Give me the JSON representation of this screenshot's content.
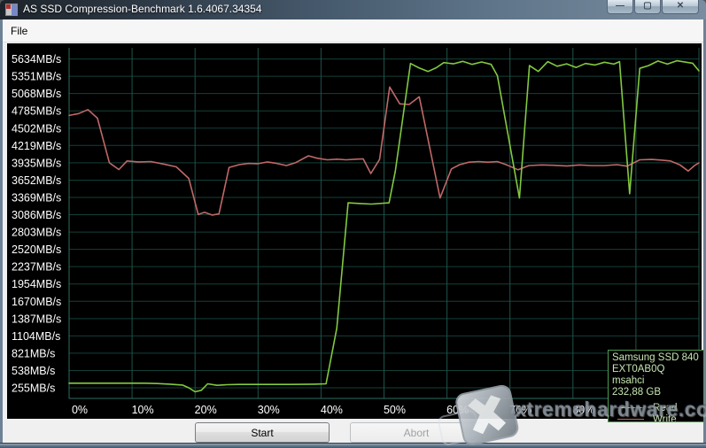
{
  "window": {
    "title": "AS SSD Compression-Benchmark 1.6.4067.34354",
    "controls": [
      {
        "name": "minimize",
        "glyph": "—"
      },
      {
        "name": "maximize",
        "glyph": "▢"
      },
      {
        "name": "close",
        "glyph": "✕"
      }
    ]
  },
  "menu": {
    "items": [
      {
        "label": "File"
      }
    ]
  },
  "chart_data": {
    "type": "line",
    "title": "AS SSD Compression-Benchmark",
    "xlabel": "",
    "ylabel": "",
    "x_tick_labels": [
      "0%",
      "10%",
      "20%",
      "30%",
      "40%",
      "50%",
      "60%",
      "70%",
      "80%",
      "90%",
      "100%"
    ],
    "x_tick_values": [
      0,
      10,
      20,
      30,
      40,
      50,
      60,
      70,
      80,
      90,
      100
    ],
    "y_tick_labels": [
      "5634MB/s",
      "5351MB/s",
      "5068MB/s",
      "4785MB/s",
      "4502MB/s",
      "4219MB/s",
      "3935MB/s",
      "3652MB/s",
      "3369MB/s",
      "3086MB/s",
      "2803MB/s",
      "2520MB/s",
      "2237MB/s",
      "1954MB/s",
      "1670MB/s",
      "1387MB/s",
      "1104MB/s",
      "821MB/s",
      "538MB/s",
      "255MB/s"
    ],
    "y_tick_values": [
      5634,
      5351,
      5068,
      4785,
      4502,
      4219,
      3935,
      3652,
      3369,
      3086,
      2803,
      2520,
      2237,
      1954,
      1670,
      1387,
      1104,
      821,
      538,
      255
    ],
    "xlim": [
      0,
      100
    ],
    "ylim": [
      80,
      5820
    ],
    "grid": true,
    "background": "#000000",
    "gridline_color_h": "#143f38",
    "gridline_color_v": "#1d5449",
    "axis_color": "#2b6e60",
    "legend_position": "bottom-right",
    "series": [
      {
        "name": "Write",
        "color": "#c06868",
        "points": [
          [
            0,
            4710
          ],
          [
            1.5,
            4740
          ],
          [
            3,
            4805
          ],
          [
            4.5,
            4665
          ],
          [
            6.4,
            3935
          ],
          [
            7.9,
            3825
          ],
          [
            9.2,
            3965
          ],
          [
            11,
            3950
          ],
          [
            13,
            3955
          ],
          [
            15,
            3915
          ],
          [
            17,
            3870
          ],
          [
            19,
            3680
          ],
          [
            20.5,
            3090
          ],
          [
            21.5,
            3125
          ],
          [
            22.7,
            3080
          ],
          [
            23.8,
            3100
          ],
          [
            25.4,
            3860
          ],
          [
            27,
            3905
          ],
          [
            28.5,
            3925
          ],
          [
            30,
            3920
          ],
          [
            31.5,
            3950
          ],
          [
            33,
            3925
          ],
          [
            34.5,
            3890
          ],
          [
            36,
            3940
          ],
          [
            38,
            4050
          ],
          [
            39.4,
            4010
          ],
          [
            41,
            3985
          ],
          [
            42.5,
            3995
          ],
          [
            44,
            3985
          ],
          [
            45.5,
            3995
          ],
          [
            46.7,
            4000
          ],
          [
            47.9,
            3760
          ],
          [
            49.3,
            3990
          ],
          [
            50.9,
            5175
          ],
          [
            52.5,
            4900
          ],
          [
            54,
            4890
          ],
          [
            55.6,
            5015
          ],
          [
            58.9,
            3360
          ],
          [
            60.7,
            3835
          ],
          [
            62,
            3905
          ],
          [
            63.5,
            3945
          ],
          [
            65,
            3955
          ],
          [
            66.5,
            3945
          ],
          [
            68,
            3955
          ],
          [
            69.5,
            3900
          ],
          [
            71.3,
            3820
          ],
          [
            73,
            3890
          ],
          [
            75,
            3900
          ],
          [
            77,
            3895
          ],
          [
            79,
            3885
          ],
          [
            81,
            3900
          ],
          [
            83,
            3890
          ],
          [
            85,
            3890
          ],
          [
            87,
            3905
          ],
          [
            88.6,
            3880
          ],
          [
            90.6,
            3985
          ],
          [
            92.5,
            3990
          ],
          [
            94,
            3980
          ],
          [
            95.5,
            3965
          ],
          [
            97,
            3900
          ],
          [
            98.3,
            3800
          ],
          [
            99.3,
            3890
          ],
          [
            100,
            3935
          ]
        ]
      },
      {
        "name": "Read",
        "color": "#82c940",
        "points": [
          [
            0,
            330
          ],
          [
            2,
            330
          ],
          [
            4,
            330
          ],
          [
            6,
            330
          ],
          [
            8,
            330
          ],
          [
            10,
            330
          ],
          [
            12,
            330
          ],
          [
            14,
            325
          ],
          [
            16,
            315
          ],
          [
            18,
            300
          ],
          [
            19,
            255
          ],
          [
            20,
            190
          ],
          [
            21,
            215
          ],
          [
            22,
            320
          ],
          [
            23.5,
            295
          ],
          [
            25,
            305
          ],
          [
            27,
            310
          ],
          [
            29,
            310
          ],
          [
            31,
            310
          ],
          [
            33,
            310
          ],
          [
            35,
            310
          ],
          [
            37,
            312
          ],
          [
            39,
            315
          ],
          [
            40.8,
            320
          ],
          [
            42.5,
            1230
          ],
          [
            44.3,
            3280
          ],
          [
            46,
            3270
          ],
          [
            48,
            3260
          ],
          [
            50.8,
            3280
          ],
          [
            51.8,
            3800
          ],
          [
            54.2,
            5560
          ],
          [
            55.5,
            5490
          ],
          [
            57,
            5430
          ],
          [
            58.3,
            5490
          ],
          [
            59.5,
            5575
          ],
          [
            61,
            5555
          ],
          [
            62.5,
            5595
          ],
          [
            64,
            5545
          ],
          [
            65.5,
            5585
          ],
          [
            67,
            5545
          ],
          [
            68,
            5360
          ],
          [
            71.5,
            3360
          ],
          [
            73.1,
            5525
          ],
          [
            74.5,
            5430
          ],
          [
            76,
            5590
          ],
          [
            77.5,
            5515
          ],
          [
            79,
            5555
          ],
          [
            80.5,
            5495
          ],
          [
            82,
            5560
          ],
          [
            83.5,
            5535
          ],
          [
            85,
            5580
          ],
          [
            86.5,
            5550
          ],
          [
            87.4,
            5590
          ],
          [
            89,
            3430
          ],
          [
            90.6,
            5480
          ],
          [
            92,
            5525
          ],
          [
            93.5,
            5600
          ],
          [
            95,
            5550
          ],
          [
            96.5,
            5605
          ],
          [
            98,
            5580
          ],
          [
            99,
            5565
          ],
          [
            100,
            5440
          ]
        ]
      }
    ]
  },
  "legend": {
    "device": "Samsung SSD 840",
    "firmware": "EXT0AB0Q",
    "driver": "msahci",
    "capacity": "232,88 GB",
    "entries": [
      {
        "label": "Read",
        "color": "#82c940"
      },
      {
        "label": "Write",
        "color": "#c06868"
      }
    ]
  },
  "buttons": {
    "start": "Start",
    "abort": "Abort"
  },
  "watermark": {
    "text": "xtremehardware.com"
  }
}
